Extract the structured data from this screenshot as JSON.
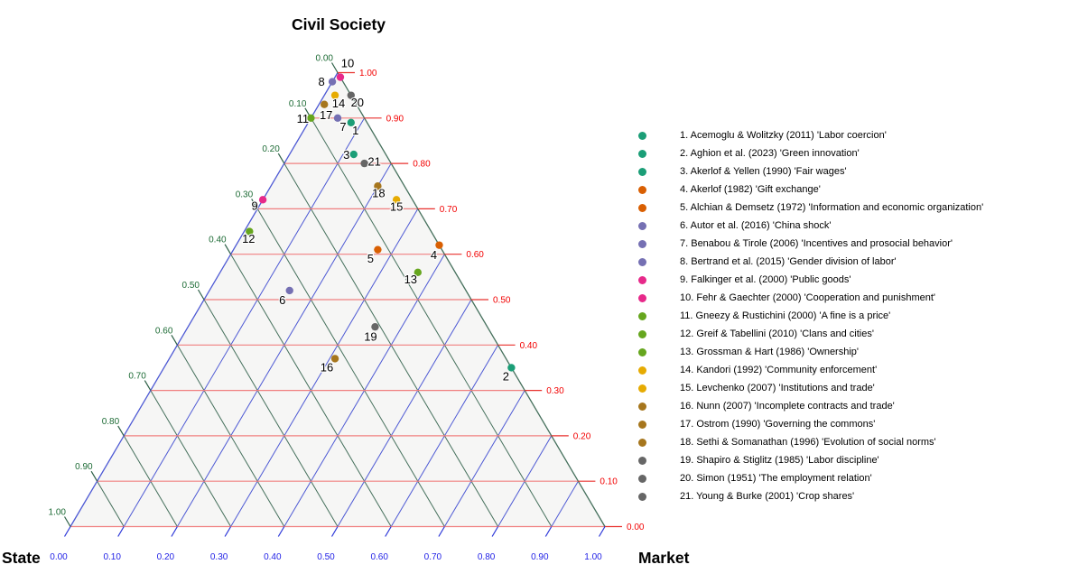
{
  "chart_data": {
    "type": "scatter",
    "subtype": "ternary",
    "title": "Civil Society",
    "axes": {
      "top": {
        "label": "Civil Society",
        "side": "right",
        "grid_color": "#f08080",
        "tick_color": "#e8312e",
        "label_color": "#f20000",
        "tick_labels": [
          "0.00",
          "0.10",
          "0.20",
          "0.30",
          "0.40",
          "0.50",
          "0.60",
          "0.70",
          "0.80",
          "0.90",
          "1.00"
        ]
      },
      "left": {
        "label": "State",
        "side": "left",
        "grid_color": "#45705c",
        "tick_color": "#2c5f45",
        "label_color": "#1d6b35",
        "tick_labels": [
          "0.00",
          "0.10",
          "0.20",
          "0.30",
          "0.40",
          "0.50",
          "0.60",
          "0.70",
          "0.80",
          "0.90",
          "1.00"
        ]
      },
      "bottom": {
        "label": "Market",
        "side": "bottom",
        "grid_color": "#4d59d4",
        "tick_color": "#2a35d8",
        "label_color": "#2222e6",
        "tick_labels": [
          "0.00",
          "0.10",
          "0.20",
          "0.30",
          "0.40",
          "0.50",
          "0.60",
          "0.70",
          "0.80",
          "0.90",
          "1.00"
        ]
      }
    },
    "axis_range": [
      0,
      1
    ],
    "grid_step": 0.1,
    "legend_position": "right",
    "points": [
      {
        "n": "1",
        "legend_label": "1. Acemoglu & Wolitzky (2011) 'Labor coercion'",
        "color": "#1b9e77",
        "state": 0.03,
        "market": 0.08,
        "civil": 0.89,
        "label_offset": [
          5,
          9
        ]
      },
      {
        "n": "2",
        "legend_label": "2. Aghion et al. (2023) 'Green innovation'",
        "color": "#1b9e77",
        "state": 0.0,
        "market": 0.65,
        "civil": 0.35,
        "label_offset": [
          -6,
          10
        ]
      },
      {
        "n": "3",
        "legend_label": "3. Akerlof & Yellen (1990) 'Fair wages'",
        "color": "#1b9e77",
        "state": 0.06,
        "market": 0.12,
        "civil": 0.82,
        "label_offset": [
          -8,
          1
        ]
      },
      {
        "n": "4",
        "legend_label": "4. Akerlof (1982) 'Gift exchange'",
        "color": "#d95f02",
        "state": 0.0,
        "market": 0.38,
        "civil": 0.62,
        "label_offset": [
          -6,
          11
        ]
      },
      {
        "n": "5",
        "legend_label": "5. Alchian & Demsetz (1972) 'Information and economic organization'",
        "color": "#d95f02",
        "state": 0.12,
        "market": 0.27,
        "civil": 0.61,
        "label_offset": [
          -8,
          10
        ]
      },
      {
        "n": "6",
        "legend_label": "6. Autor et al. (2016) 'China shock'",
        "color": "#7570b3",
        "state": 0.33,
        "market": 0.15,
        "civil": 0.52,
        "label_offset": [
          -8,
          11
        ]
      },
      {
        "n": "7",
        "legend_label": "7. Benabou & Tirole (2006) 'Incentives and prosocial behavior'",
        "color": "#7570b3",
        "state": 0.05,
        "market": 0.05,
        "civil": 0.9,
        "label_offset": [
          6,
          10
        ]
      },
      {
        "n": "8",
        "legend_label": "8. Bertrand et al. (2015) 'Gender division of labor'",
        "color": "#7570b3",
        "state": 0.02,
        "market": 0.0,
        "civil": 0.98,
        "label_offset": [
          -12,
          0
        ]
      },
      {
        "n": "9",
        "legend_label": "9. Falkinger et al. (2000) 'Public goods'",
        "color": "#e7298a",
        "state": 0.28,
        "market": 0.0,
        "civil": 0.72,
        "label_offset": [
          -9,
          7
        ]
      },
      {
        "n": "10",
        "legend_label": "10. Fehr & Gaechter (2000) 'Cooperation and punishment'",
        "color": "#e7298a",
        "state": 0.0,
        "market": 0.01,
        "civil": 0.99,
        "label_offset": [
          8,
          -15
        ]
      },
      {
        "n": "11",
        "legend_label": "11. Gneezy & Rustichini (2000) 'A fine is a price'",
        "color": "#66a61e",
        "state": 0.1,
        "market": 0.0,
        "civil": 0.9,
        "label_offset": [
          -9,
          1
        ]
      },
      {
        "n": "12",
        "legend_label": "12. Greif & Tabellini (2010) 'Clans and cities'",
        "color": "#66a61e",
        "state": 0.34,
        "market": 0.01,
        "civil": 0.65,
        "label_offset": [
          -1,
          8
        ]
      },
      {
        "n": "13",
        "legend_label": "13. Grossman & Hart (1986) 'Ownership'",
        "color": "#66a61e",
        "state": 0.07,
        "market": 0.37,
        "civil": 0.56,
        "label_offset": [
          -8,
          8
        ]
      },
      {
        "n": "14",
        "legend_label": "14. Kandori (1992) 'Community enforcement'",
        "color": "#e6ab02",
        "state": 0.03,
        "market": 0.02,
        "civil": 0.95,
        "label_offset": [
          4,
          9
        ]
      },
      {
        "n": "15",
        "legend_label": "15. Levchenko (2007) 'Institutions and trade'",
        "color": "#e6ab02",
        "state": 0.03,
        "market": 0.25,
        "civil": 0.72,
        "label_offset": [
          0,
          8
        ]
      },
      {
        "n": "16",
        "legend_label": "16. Nunn (2007) 'Incomplete contracts and trade'",
        "color": "#a6761d",
        "state": 0.32,
        "market": 0.31,
        "civil": 0.37,
        "label_offset": [
          -9,
          10
        ]
      },
      {
        "n": "17",
        "legend_label": "17. Ostrom (1990) 'Governing the commons'",
        "color": "#a6761d",
        "state": 0.06,
        "market": 0.01,
        "civil": 0.93,
        "label_offset": [
          2,
          12
        ]
      },
      {
        "n": "18",
        "legend_label": "18. Sethi & Somanathan (1996) 'Evolution of social norms'",
        "color": "#a6761d",
        "state": 0.05,
        "market": 0.2,
        "civil": 0.75,
        "label_offset": [
          1,
          8
        ]
      },
      {
        "n": "19",
        "legend_label": "19. Shapiro & Stiglitz (1985) 'Labor discipline'",
        "color": "#666666",
        "state": 0.21,
        "market": 0.35,
        "civil": 0.44,
        "label_offset": [
          -5,
          11
        ]
      },
      {
        "n": "20",
        "legend_label": "20. Simon (1951) 'The employment relation'",
        "color": "#666666",
        "state": 0.0,
        "market": 0.05,
        "civil": 0.95,
        "label_offset": [
          7,
          8
        ]
      },
      {
        "n": "21",
        "legend_label": "21. Young & Burke (2001) 'Crop shares'",
        "color": "#666666",
        "state": 0.05,
        "market": 0.15,
        "civil": 0.8,
        "label_offset": [
          11,
          -2
        ]
      }
    ],
    "triangle_fill": "#f6f6f5"
  }
}
